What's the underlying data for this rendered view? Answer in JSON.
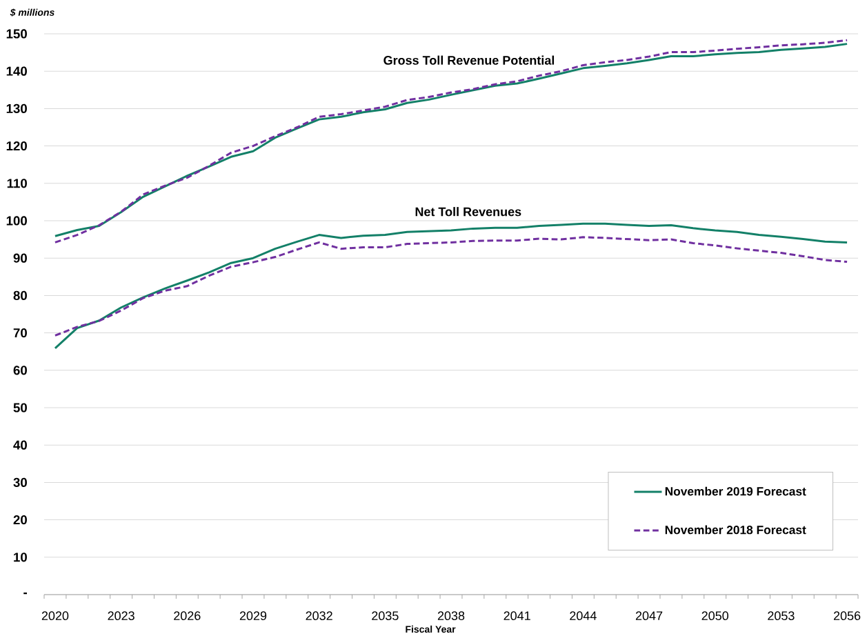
{
  "chart_data": {
    "type": "line",
    "ylabel": "$ millions",
    "xlabel": "Fiscal Year",
    "categories": [
      "2020",
      null,
      null,
      "2023",
      null,
      null,
      "2026",
      null,
      null,
      "2029",
      null,
      null,
      "2032",
      null,
      null,
      "2035",
      null,
      null,
      "2038",
      null,
      null,
      "2041",
      null,
      null,
      "2044",
      null,
      null,
      "2047",
      null,
      null,
      "2050",
      null,
      null,
      "2053",
      null,
      null,
      "2056"
    ],
    "series": [
      {
        "name": "November 2019 Forecast",
        "color": "#138068",
        "line_style": "solid",
        "values": [
          95.9,
          97.5,
          98.6,
          102.3,
          106.4,
          109.2,
          112.0,
          114.5,
          117.1,
          118.6,
          122.2,
          124.7,
          127.1,
          127.8,
          129.0,
          129.8,
          131.5,
          132.4,
          133.7,
          134.9,
          136.1,
          136.7,
          138.0,
          139.4,
          140.8,
          141.4,
          142.1,
          143.0,
          144.0,
          144.0,
          144.5,
          144.9,
          145.1,
          145.7,
          146.1,
          146.5,
          147.3
        ]
      },
      {
        "name": "November 2018 Forecast",
        "color": "#7030a0",
        "line_style": "dashed",
        "values": [
          94.2,
          96.2,
          98.8,
          102.4,
          107.0,
          109.4,
          111.5,
          114.7,
          118.2,
          120.0,
          122.6,
          125.0,
          127.8,
          128.5,
          129.5,
          130.5,
          132.3,
          133.1,
          134.3,
          135.2,
          136.5,
          137.3,
          138.8,
          140.0,
          141.6,
          142.4,
          143.0,
          143.9,
          145.1,
          145.1,
          145.5,
          146.0,
          146.4,
          146.9,
          147.2,
          147.6,
          148.3
        ]
      },
      {
        "color": "#138068",
        "line_style": "solid",
        "values": [
          65.9,
          71.3,
          73.3,
          76.8,
          79.5,
          81.9,
          84.0,
          86.2,
          88.7,
          90.0,
          92.5,
          94.4,
          96.2,
          95.4,
          96.0,
          96.2,
          97.0,
          97.2,
          97.4,
          97.9,
          98.1,
          98.1,
          98.6,
          98.9,
          99.2,
          99.2,
          98.9,
          98.6,
          98.8,
          98.0,
          97.4,
          97.0,
          96.2,
          95.7,
          95.1,
          94.4,
          94.2
        ]
      },
      {
        "color": "#7030a0",
        "line_style": "dashed",
        "values": [
          69.3,
          71.6,
          73.2,
          76.0,
          79.3,
          81.3,
          82.5,
          85.3,
          87.7,
          88.9,
          90.3,
          92.3,
          94.2,
          92.5,
          92.9,
          92.9,
          93.8,
          94.0,
          94.2,
          94.6,
          94.7,
          94.7,
          95.2,
          95.0,
          95.6,
          95.4,
          95.1,
          94.8,
          95.0,
          94.0,
          93.4,
          92.6,
          92.0,
          91.4,
          90.5,
          89.5,
          89.0
        ]
      }
    ],
    "ylim": [
      0,
      150
    ],
    "yticks": [
      {
        "value": 0,
        "label": "-"
      },
      10,
      20,
      30,
      40,
      50,
      60,
      70,
      80,
      90,
      100,
      110,
      120,
      130,
      140,
      150
    ],
    "grid": "y",
    "legend": "bottom right",
    "marker": "none",
    "annotations": [
      "Gross Toll Revenue Potential",
      "Net Toll Revenues"
    ]
  }
}
